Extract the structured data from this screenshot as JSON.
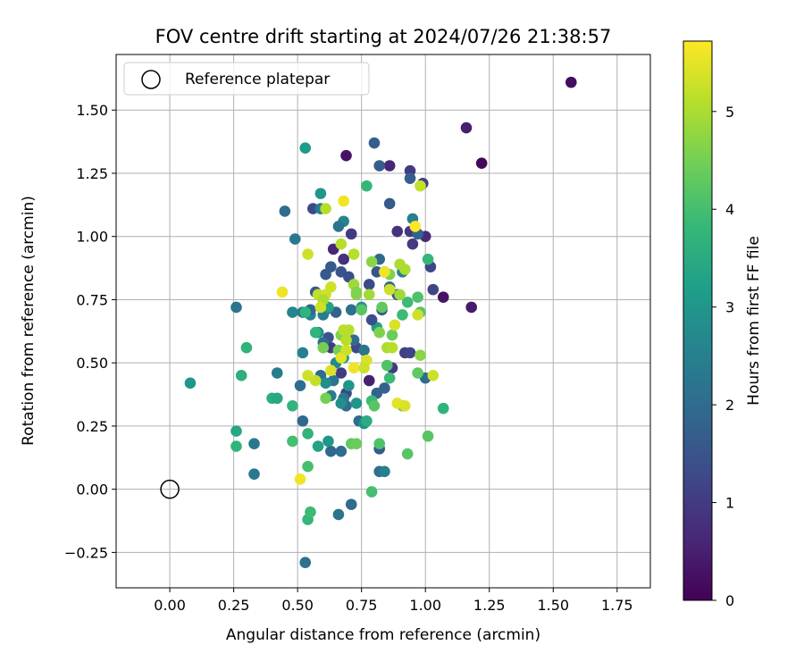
{
  "chart_data": {
    "type": "scatter",
    "title": "FOV centre drift starting at 2024/07/26 21:38:57",
    "xlabel": "Angular distance from reference (arcmin)",
    "ylabel": "Rotation from reference (arcmin)",
    "xlim": [
      -0.21,
      1.88
    ],
    "ylim": [
      -0.39,
      1.72
    ],
    "xticks": [
      "0.00",
      "0.25",
      "0.50",
      "0.75",
      "1.00",
      "1.25",
      "1.50",
      "1.75"
    ],
    "yticks": [
      "−0.25",
      "0.00",
      "0.25",
      "0.50",
      "0.75",
      "1.00",
      "1.25",
      "1.50"
    ],
    "grid": true,
    "legend": {
      "label": "Reference platepar",
      "position": "upper-left"
    },
    "reference_point": {
      "x": 0.0,
      "y": 0.0
    },
    "colorbar": {
      "label": "Hours from first FF file",
      "min": 0,
      "max": 5.72,
      "ticks": [
        "0",
        "1",
        "2",
        "3",
        "4",
        "5"
      ],
      "colormap": "viridis",
      "colormap_stops": [
        "#440154",
        "#482878",
        "#3e4989",
        "#31688e",
        "#26828e",
        "#1f9e89",
        "#35b779",
        "#6ece58",
        "#b5de2b",
        "#fde725"
      ]
    },
    "points": [
      [
        1.57,
        1.61,
        0.2
      ],
      [
        1.16,
        1.43,
        0.5
      ],
      [
        1.22,
        1.29,
        0.1
      ],
      [
        1.18,
        0.72,
        0.4
      ],
      [
        1.07,
        0.76,
        0.3
      ],
      [
        0.69,
        1.32,
        0.3
      ],
      [
        0.86,
        1.28,
        0.6
      ],
      [
        0.94,
        1.26,
        1.0
      ],
      [
        0.99,
        1.21,
        1.1
      ],
      [
        0.95,
        0.97,
        1.0
      ],
      [
        1.0,
        1.0,
        0.7
      ],
      [
        1.02,
        0.88,
        1.2
      ],
      [
        1.03,
        0.79,
        1.2
      ],
      [
        0.94,
        1.02,
        0.9
      ],
      [
        0.89,
        1.02,
        0.8
      ],
      [
        0.67,
        0.46,
        1.0
      ],
      [
        0.78,
        0.43,
        0.5
      ],
      [
        0.92,
        0.54,
        1.1
      ],
      [
        0.94,
        0.54,
        1.2
      ],
      [
        0.87,
        0.48,
        1.0
      ],
      [
        0.69,
        0.38,
        1.2
      ],
      [
        0.63,
        0.56,
        1.0
      ],
      [
        0.73,
        0.56,
        1.3
      ],
      [
        0.56,
        1.11,
        1.3
      ],
      [
        0.71,
        1.01,
        1.0
      ],
      [
        0.86,
        1.13,
        1.6
      ],
      [
        0.8,
        1.37,
        1.7
      ],
      [
        0.82,
        1.28,
        1.7
      ],
      [
        0.94,
        1.23,
        1.7
      ],
      [
        0.64,
        0.95,
        0.6
      ],
      [
        0.68,
        0.91,
        0.8
      ],
      [
        0.81,
        0.86,
        1.5
      ],
      [
        0.63,
        0.88,
        1.6
      ],
      [
        0.61,
        0.85,
        1.6
      ],
      [
        0.67,
        0.86,
        1.5
      ],
      [
        0.57,
        0.78,
        1.6
      ],
      [
        0.7,
        0.84,
        1.4
      ],
      [
        0.83,
        0.71,
        1.6
      ],
      [
        0.61,
        0.71,
        1.6
      ],
      [
        0.65,
        0.7,
        1.8
      ],
      [
        0.78,
        0.81,
        1.3
      ],
      [
        0.82,
        0.91,
        1.9
      ],
      [
        0.97,
        1.01,
        1.8
      ],
      [
        0.86,
        0.8,
        1.9
      ],
      [
        0.89,
        0.77,
        1.6
      ],
      [
        0.62,
        0.6,
        1.5
      ],
      [
        0.69,
        0.33,
        2.0
      ],
      [
        0.67,
        0.15,
        2.0
      ],
      [
        0.63,
        0.15,
        1.9
      ],
      [
        0.74,
        0.27,
        2.0
      ],
      [
        0.81,
        0.38,
        1.8
      ],
      [
        0.84,
        0.4,
        1.8
      ],
      [
        0.82,
        0.16,
        1.6
      ],
      [
        0.82,
        0.07,
        2.1
      ],
      [
        0.84,
        0.07,
        2.5
      ],
      [
        0.71,
        -0.06,
        2.0
      ],
      [
        0.66,
        -0.1,
        2.2
      ],
      [
        0.53,
        -0.29,
        2.1
      ],
      [
        0.52,
        0.27,
        1.9
      ],
      [
        0.51,
        0.41,
        2.0
      ],
      [
        0.68,
        0.36,
        2.3
      ],
      [
        0.64,
        0.43,
        2.2
      ],
      [
        0.59,
        0.45,
        2.0
      ],
      [
        0.6,
        0.58,
        2.0
      ],
      [
        0.72,
        0.59,
        2.0
      ],
      [
        0.71,
        0.71,
        2.1
      ],
      [
        0.6,
        0.69,
        2.4
      ],
      [
        0.58,
        0.62,
        2.3
      ],
      [
        0.55,
        0.69,
        2.6
      ],
      [
        0.45,
        1.1,
        2.0
      ],
      [
        0.49,
        0.99,
        2.3
      ],
      [
        0.59,
        1.11,
        2.4
      ],
      [
        0.68,
        1.06,
        2.6
      ],
      [
        0.66,
        1.04,
        2.2
      ],
      [
        0.95,
        1.07,
        2.5
      ],
      [
        0.84,
        0.86,
        2.3
      ],
      [
        0.91,
        0.86,
        2.5
      ],
      [
        1.0,
        0.44,
        2.0
      ],
      [
        0.55,
        0.71,
        1.9
      ],
      [
        0.52,
        0.7,
        2.1
      ],
      [
        0.58,
        0.62,
        2.8
      ],
      [
        0.33,
        0.18,
        2.3
      ],
      [
        0.33,
        0.06,
        2.3
      ],
      [
        0.26,
        0.72,
        2.2
      ],
      [
        0.42,
        0.46,
        2.4
      ],
      [
        0.48,
        0.7,
        2.6
      ],
      [
        0.52,
        0.54,
        2.5
      ],
      [
        0.61,
        0.42,
        2.8
      ],
      [
        0.63,
        0.37,
        2.4
      ],
      [
        0.67,
        0.34,
        2.8
      ],
      [
        0.73,
        0.34,
        3.0
      ],
      [
        0.76,
        0.26,
        2.9
      ],
      [
        0.62,
        0.19,
        3.0
      ],
      [
        0.58,
        0.17,
        3.3
      ],
      [
        0.76,
        0.55,
        2.2
      ],
      [
        0.81,
        0.64,
        3.2
      ],
      [
        0.65,
        0.5,
        2.7
      ],
      [
        0.68,
        0.52,
        3.2
      ],
      [
        0.7,
        0.41,
        3.0
      ],
      [
        0.59,
        1.17,
        3.0
      ],
      [
        0.53,
        1.35,
        3.1
      ],
      [
        0.75,
        0.72,
        2.9
      ],
      [
        0.62,
        0.72,
        3.3
      ],
      [
        0.57,
        0.62,
        3.7
      ],
      [
        0.4,
        0.36,
        3.6
      ],
      [
        0.42,
        0.36,
        3.4
      ],
      [
        0.28,
        0.45,
        3.6
      ],
      [
        0.3,
        0.56,
        3.7
      ],
      [
        0.26,
        0.23,
        3.4
      ],
      [
        0.26,
        0.17,
        3.7
      ],
      [
        0.08,
        0.42,
        3.0
      ],
      [
        0.48,
        0.33,
        3.7
      ],
      [
        0.54,
        0.22,
        3.7
      ],
      [
        0.54,
        -0.12,
        3.8
      ],
      [
        0.55,
        -0.09,
        3.9
      ],
      [
        0.48,
        0.19,
        4.0
      ],
      [
        0.54,
        0.09,
        4.0
      ],
      [
        0.53,
        0.7,
        3.7
      ],
      [
        0.77,
        1.2,
        3.8
      ],
      [
        0.77,
        0.27,
        3.5
      ],
      [
        0.79,
        0.35,
        3.9
      ],
      [
        0.8,
        0.33,
        4.2
      ],
      [
        0.79,
        -0.01,
        4.0
      ],
      [
        0.82,
        0.18,
        4.1
      ],
      [
        0.71,
        0.18,
        4.3
      ],
      [
        0.73,
        0.18,
        4.4
      ],
      [
        0.86,
        0.44,
        3.9
      ],
      [
        0.85,
        0.49,
        4.1
      ],
      [
        0.91,
        0.69,
        3.9
      ],
      [
        0.93,
        0.74,
        3.9
      ],
      [
        0.98,
        0.7,
        4.2
      ],
      [
        0.97,
        0.76,
        4.1
      ],
      [
        1.01,
        0.91,
        3.8
      ],
      [
        1.01,
        0.21,
        4.2
      ],
      [
        1.07,
        0.32,
        3.7
      ],
      [
        0.93,
        0.14,
        4.2
      ],
      [
        0.97,
        0.46,
        4.3
      ],
      [
        0.91,
        0.33,
        4.5
      ],
      [
        0.79,
        0.9,
        4.7
      ],
      [
        0.83,
        0.72,
        4.3
      ],
      [
        0.75,
        0.71,
        4.2
      ],
      [
        0.82,
        0.62,
        4.6
      ],
      [
        0.87,
        0.61,
        4.4
      ],
      [
        0.73,
        0.77,
        4.7
      ],
      [
        0.72,
        0.81,
        4.9
      ],
      [
        0.78,
        0.77,
        4.9
      ],
      [
        0.86,
        0.85,
        4.6
      ],
      [
        0.9,
        0.77,
        4.9
      ],
      [
        0.92,
        0.87,
        5.0
      ],
      [
        0.98,
        0.53,
        4.7
      ],
      [
        0.66,
        0.55,
        4.5
      ],
      [
        0.6,
        0.56,
        4.5
      ],
      [
        0.67,
        0.61,
        4.6
      ],
      [
        0.68,
        0.63,
        5.1
      ],
      [
        0.7,
        0.63,
        5.1
      ],
      [
        0.61,
        1.11,
        5.1
      ],
      [
        0.67,
        0.97,
        5.1
      ],
      [
        0.72,
        0.93,
        5.1
      ],
      [
        0.54,
        0.93,
        5.3
      ],
      [
        0.58,
        0.77,
        5.2
      ],
      [
        0.61,
        0.77,
        5.3
      ],
      [
        0.63,
        0.8,
        5.3
      ],
      [
        0.6,
        0.75,
        5.0
      ],
      [
        0.59,
        0.72,
        5.3
      ],
      [
        0.61,
        0.36,
        4.5
      ],
      [
        0.57,
        0.43,
        5.2
      ],
      [
        0.54,
        0.45,
        5.3
      ],
      [
        0.63,
        0.47,
        5.4
      ],
      [
        0.67,
        0.52,
        5.5
      ],
      [
        0.69,
        0.55,
        5.3
      ],
      [
        0.69,
        0.59,
        5.1
      ],
      [
        0.72,
        0.48,
        5.6
      ],
      [
        0.77,
        0.51,
        5.4
      ],
      [
        0.76,
        0.48,
        5.3
      ],
      [
        0.85,
        0.56,
        5.0
      ],
      [
        0.87,
        0.56,
        5.1
      ],
      [
        0.84,
        0.86,
        5.6
      ],
      [
        0.86,
        0.79,
        5.3
      ],
      [
        0.9,
        0.89,
        5.0
      ],
      [
        0.97,
        0.69,
        5.3
      ],
      [
        0.88,
        0.65,
        5.4
      ],
      [
        0.89,
        0.34,
        5.5
      ],
      [
        0.92,
        0.33,
        5.4
      ],
      [
        1.03,
        0.45,
        5.3
      ],
      [
        0.44,
        0.78,
        5.6
      ],
      [
        0.51,
        0.04,
        5.6
      ],
      [
        0.96,
        1.04,
        5.7
      ],
      [
        0.98,
        1.2,
        5.2
      ],
      [
        0.68,
        1.14,
        5.6
      ],
      [
        0.73,
        0.78,
        4.6
      ],
      [
        0.79,
        0.67,
        1.4
      ]
    ]
  }
}
